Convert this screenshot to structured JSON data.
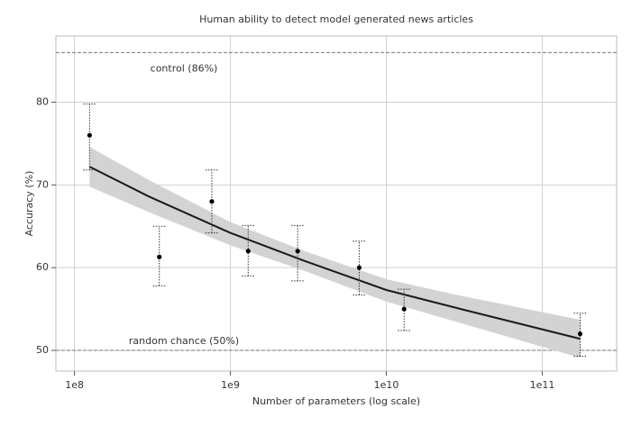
{
  "chart_data": {
    "type": "scatter",
    "title": "Human ability to detect model generated news articles",
    "xlabel": "Number of parameters (log scale)",
    "ylabel": "Accuracy (%)",
    "xscale": "log",
    "xlim": [
      76000000,
      300000000000
    ],
    "ylim": [
      47.5,
      88
    ],
    "xticks": [
      {
        "value": 100000000,
        "label": "1e8"
      },
      {
        "value": 1000000000,
        "label": "1e9"
      },
      {
        "value": 10000000000,
        "label": "1e10"
      },
      {
        "value": 100000000000,
        "label": "1e11"
      }
    ],
    "yticks": [
      50,
      60,
      70,
      80
    ],
    "grid": true,
    "points": {
      "color": "#000000",
      "x": [
        125000000,
        350000000,
        760000000,
        1300000000,
        2700000000,
        6700000000,
        13000000000,
        175000000000
      ],
      "values": [
        76,
        61.3,
        68,
        62,
        62,
        60,
        55,
        52
      ],
      "yerr_lower": [
        71.8,
        57.8,
        64.2,
        59.0,
        58.4,
        56.7,
        52.4,
        49.3
      ],
      "yerr_upper": [
        79.8,
        65.0,
        71.8,
        65.1,
        65.1,
        63.2,
        57.4,
        54.5
      ]
    },
    "fit": {
      "color": "#1a1a1a",
      "band_color": "#d3d3d3",
      "x": [
        125000000,
        300000000,
        1000000000,
        3000000000,
        10000000000,
        30000000000,
        175000000000
      ],
      "values": [
        72.2,
        68.6,
        64.2,
        60.8,
        57.3,
        55.0,
        51.4
      ],
      "lower": [
        69.8,
        66.7,
        62.7,
        59.6,
        55.9,
        53.3,
        49.1
      ],
      "upper": [
        74.6,
        70.6,
        65.5,
        62.0,
        58.6,
        56.6,
        53.7
      ]
    },
    "hlines": [
      {
        "value": 86,
        "label": "control (86%)"
      },
      {
        "value": 50,
        "label": "random chance (50%)"
      }
    ]
  }
}
